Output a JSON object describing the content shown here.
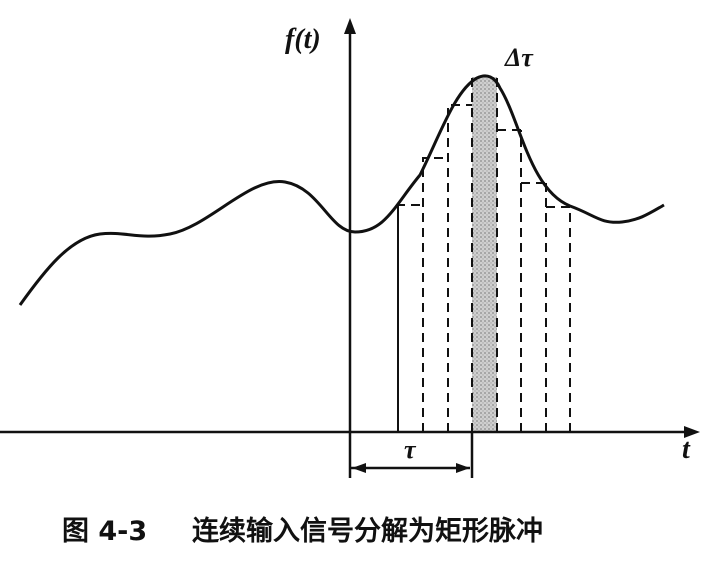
{
  "figure": {
    "y_axis_label": "f(t)",
    "x_axis_label": "t",
    "pulse_width_label": "Δτ",
    "interval_label": "τ",
    "caption_number": "图 4-3",
    "caption_text": "连续输入信号分解为矩形脉冲"
  }
}
